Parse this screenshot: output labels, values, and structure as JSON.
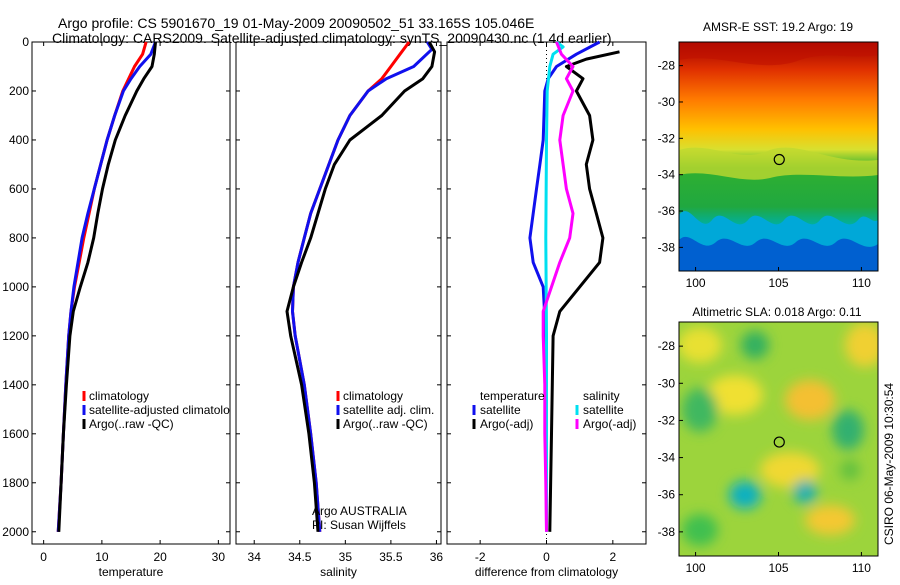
{
  "title_line1": "Argo profile: CS 5901670_19 01-May-2009 20090502_51 33.165S 105.046E",
  "title_line2": "Climatology: CARS2009. Satellite-adjusted climatology: synTS_20090430.nc (1.4d earlier)",
  "side_label": "CSIRO 06-May-2009 10:30:54",
  "colors": {
    "red": "#ff0000",
    "blue": "#1010ee",
    "black": "#000000",
    "cyan": "#00e0f0",
    "magenta": "#ff00ff"
  },
  "chart_data": [
    {
      "type": "line",
      "name": "temperature-profile",
      "xlabel": "temperature",
      "xlim": [
        -2,
        32
      ],
      "ylim": [
        2050,
        0
      ],
      "xticks": [
        0,
        10,
        20,
        30
      ],
      "yticks": [
        0,
        200,
        400,
        600,
        800,
        1000,
        1200,
        1400,
        1600,
        1800,
        2000
      ],
      "series": [
        {
          "name": "climatology",
          "color": "#ff0000",
          "points": [
            [
              17.6,
              0
            ],
            [
              17,
              50
            ],
            [
              15.6,
              100
            ],
            [
              14.6,
              150
            ],
            [
              13.6,
              200
            ],
            [
              12.2,
              300
            ],
            [
              10.9,
              400
            ],
            [
              9.8,
              500
            ],
            [
              8.7,
              600
            ],
            [
              7.8,
              700
            ],
            [
              6.9,
              800
            ],
            [
              6.1,
              900
            ],
            [
              5.3,
              1000
            ],
            [
              4.7,
              1100
            ],
            [
              4.3,
              1200
            ],
            [
              3.8,
              1400
            ],
            [
              3.4,
              1600
            ],
            [
              3,
              1800
            ],
            [
              2.5,
              2000
            ]
          ]
        },
        {
          "name": "satellite-adjusted climatology",
          "color": "#1010ee",
          "points": [
            [
              19.2,
              0
            ],
            [
              18.4,
              50
            ],
            [
              16.5,
              100
            ],
            [
              15,
              150
            ],
            [
              13.7,
              200
            ],
            [
              12.2,
              300
            ],
            [
              10.9,
              400
            ],
            [
              9.8,
              500
            ],
            [
              8.7,
              600
            ],
            [
              7.6,
              700
            ],
            [
              6.6,
              800
            ],
            [
              5.9,
              900
            ],
            [
              5.2,
              1000
            ],
            [
              4.7,
              1100
            ],
            [
              4.3,
              1200
            ],
            [
              3.8,
              1400
            ],
            [
              3.4,
              1600
            ],
            [
              3,
              1800
            ],
            [
              2.5,
              2000
            ]
          ]
        },
        {
          "name": "Argo(..raw -QC)",
          "color": "#000000",
          "points": [
            [
              19.2,
              0
            ],
            [
              19,
              50
            ],
            [
              18.6,
              100
            ],
            [
              17.2,
              150
            ],
            [
              16,
              200
            ],
            [
              14,
              300
            ],
            [
              12.3,
              400
            ],
            [
              11.1,
              500
            ],
            [
              10.1,
              600
            ],
            [
              9.3,
              700
            ],
            [
              8.6,
              800
            ],
            [
              7.6,
              900
            ],
            [
              6.3,
              1000
            ],
            [
              5.1,
              1100
            ],
            [
              4.5,
              1200
            ],
            [
              3.9,
              1400
            ],
            [
              3.4,
              1600
            ],
            [
              3,
              1800
            ],
            [
              2.6,
              2000
            ]
          ]
        }
      ],
      "legend": {
        "position": "lower-right",
        "entries": [
          "climatology",
          "satellite-adjusted climatolo",
          "Argo(..raw -QC)"
        ]
      }
    },
    {
      "type": "line",
      "name": "salinity-profile",
      "xlabel": "salinity",
      "xlim": [
        33.8,
        36.05
      ],
      "ylim": [
        2050,
        0
      ],
      "xticks": [
        34,
        34.5,
        35,
        35.5,
        36
      ],
      "series": [
        {
          "name": "climatology",
          "color": "#ff0000",
          "points": [
            [
              35.7,
              0
            ],
            [
              35.6,
              50
            ],
            [
              35.5,
              100
            ],
            [
              35.4,
              150
            ],
            [
              35.25,
              200
            ],
            [
              35.05,
              300
            ],
            [
              34.92,
              400
            ],
            [
              34.82,
              500
            ],
            [
              34.72,
              600
            ],
            [
              34.62,
              700
            ],
            [
              34.55,
              800
            ],
            [
              34.48,
              900
            ],
            [
              34.43,
              1000
            ],
            [
              34.42,
              1100
            ],
            [
              34.45,
              1200
            ],
            [
              34.55,
              1400
            ],
            [
              34.62,
              1600
            ],
            [
              34.68,
              1800
            ],
            [
              34.72,
              2000
            ]
          ]
        },
        {
          "name": "satellite adj. clim.",
          "color": "#1010ee",
          "points": [
            [
              35.9,
              0
            ],
            [
              35.95,
              30
            ],
            [
              35.75,
              100
            ],
            [
              35.45,
              150
            ],
            [
              35.25,
              200
            ],
            [
              35.05,
              300
            ],
            [
              34.92,
              400
            ],
            [
              34.82,
              500
            ],
            [
              34.72,
              600
            ],
            [
              34.62,
              700
            ],
            [
              34.55,
              800
            ],
            [
              34.48,
              900
            ],
            [
              34.43,
              1000
            ],
            [
              34.42,
              1100
            ],
            [
              34.45,
              1200
            ],
            [
              34.55,
              1400
            ],
            [
              34.62,
              1600
            ],
            [
              34.68,
              1800
            ],
            [
              34.72,
              2000
            ]
          ]
        },
        {
          "name": "Argo(..raw -QC)",
          "color": "#000000",
          "points": [
            [
              35.92,
              0
            ],
            [
              35.98,
              40
            ],
            [
              35.95,
              100
            ],
            [
              35.85,
              150
            ],
            [
              35.65,
              200
            ],
            [
              35.4,
              300
            ],
            [
              35.05,
              400
            ],
            [
              34.88,
              500
            ],
            [
              34.78,
              600
            ],
            [
              34.7,
              700
            ],
            [
              34.62,
              800
            ],
            [
              34.52,
              900
            ],
            [
              34.43,
              1000
            ],
            [
              34.36,
              1100
            ],
            [
              34.4,
              1200
            ],
            [
              34.52,
              1400
            ],
            [
              34.6,
              1600
            ],
            [
              34.66,
              1800
            ],
            [
              34.7,
              2000
            ]
          ]
        }
      ],
      "legend": {
        "position": "lower-right",
        "entries": [
          "climatology",
          "satellite adj. clim.",
          "Argo(..raw -QC)"
        ]
      },
      "annotation": [
        "Argo AUSTRALIA",
        "PI: Susan Wijffels"
      ]
    },
    {
      "type": "line",
      "name": "difference-profile",
      "xlabel": "difference from climatology",
      "xlim": [
        -3,
        3
      ],
      "ylim": [
        2050,
        0
      ],
      "xticks": [
        -2,
        0,
        2
      ],
      "zero_line": true,
      "series": [
        {
          "name": "temperature satellite",
          "color": "#1010ee",
          "points": [
            [
              1.6,
              0
            ],
            [
              0.9,
              50
            ],
            [
              0.3,
              100
            ],
            [
              0.05,
              150
            ],
            [
              -0.05,
              200
            ],
            [
              -0.1,
              400
            ],
            [
              -0.2,
              500
            ],
            [
              -0.3,
              600
            ],
            [
              -0.4,
              700
            ],
            [
              -0.5,
              800
            ],
            [
              -0.4,
              900
            ],
            [
              -0.1,
              1000
            ],
            [
              -0.02,
              1200
            ],
            [
              0,
              2000
            ]
          ]
        },
        {
          "name": "temperature Argo(-adj)",
          "color": "#000000",
          "points": [
            [
              2.2,
              40
            ],
            [
              1.2,
              70
            ],
            [
              0.6,
              100
            ],
            [
              1.1,
              150
            ],
            [
              0.9,
              200
            ],
            [
              1.3,
              300
            ],
            [
              1.4,
              400
            ],
            [
              1.2,
              500
            ],
            [
              1.3,
              600
            ],
            [
              1.5,
              700
            ],
            [
              1.7,
              800
            ],
            [
              1.6,
              900
            ],
            [
              1.0,
              1000
            ],
            [
              0.4,
              1100
            ],
            [
              0.2,
              1200
            ],
            [
              0.15,
              1600
            ],
            [
              0.1,
              2000
            ]
          ]
        },
        {
          "name": "salinity satellite",
          "color": "#00e0f0",
          "points": [
            [
              0.3,
              0
            ],
            [
              0.5,
              20
            ],
            [
              0.2,
              50
            ],
            [
              0.1,
              100
            ],
            [
              0.02,
              200
            ],
            [
              0,
              400
            ],
            [
              -0.02,
              800
            ],
            [
              0,
              1200
            ],
            [
              0,
              2000
            ]
          ]
        },
        {
          "name": "salinity Argo(-adj)",
          "color": "#ff00ff",
          "points": [
            [
              0.3,
              0
            ],
            [
              0.45,
              50
            ],
            [
              0.8,
              100
            ],
            [
              0.6,
              150
            ],
            [
              0.8,
              200
            ],
            [
              0.5,
              300
            ],
            [
              0.4,
              400
            ],
            [
              0.5,
              500
            ],
            [
              0.6,
              600
            ],
            [
              0.8,
              700
            ],
            [
              0.7,
              800
            ],
            [
              0.4,
              900
            ],
            [
              0.15,
              1000
            ],
            [
              -0.1,
              1100
            ],
            [
              -0.1,
              1200
            ],
            [
              -0.05,
              1400
            ],
            [
              -0.05,
              1600
            ],
            [
              -0.02,
              1800
            ],
            [
              0,
              2000
            ]
          ]
        }
      ],
      "legend": {
        "position": "lower-center",
        "group_titles": [
          "temperature",
          "salinity"
        ],
        "entries": [
          "satellite",
          "Argo(-adj)",
          "satellite",
          "Argo(-adj)"
        ]
      }
    },
    {
      "type": "heatmap",
      "name": "sst-map",
      "title": "AMSR-E SST: 19.2 Argo: 19",
      "xlim": [
        99,
        111
      ],
      "ylim": [
        -39.3,
        -26.7
      ],
      "xticks": [
        100,
        105,
        110
      ],
      "yticks": [
        -28,
        -30,
        -32,
        -34,
        -36,
        -38
      ],
      "marker": [
        105.046,
        -33.165
      ]
    },
    {
      "type": "heatmap",
      "name": "sla-map",
      "title": "Altimetric SLA: 0.018 Argo: 0.11",
      "xlim": [
        99,
        111
      ],
      "ylim": [
        -39.3,
        -26.7
      ],
      "xticks": [
        100,
        105,
        110
      ],
      "yticks": [
        -28,
        -30,
        -32,
        -34,
        -36,
        -38
      ],
      "marker": [
        105.046,
        -33.165
      ]
    }
  ]
}
